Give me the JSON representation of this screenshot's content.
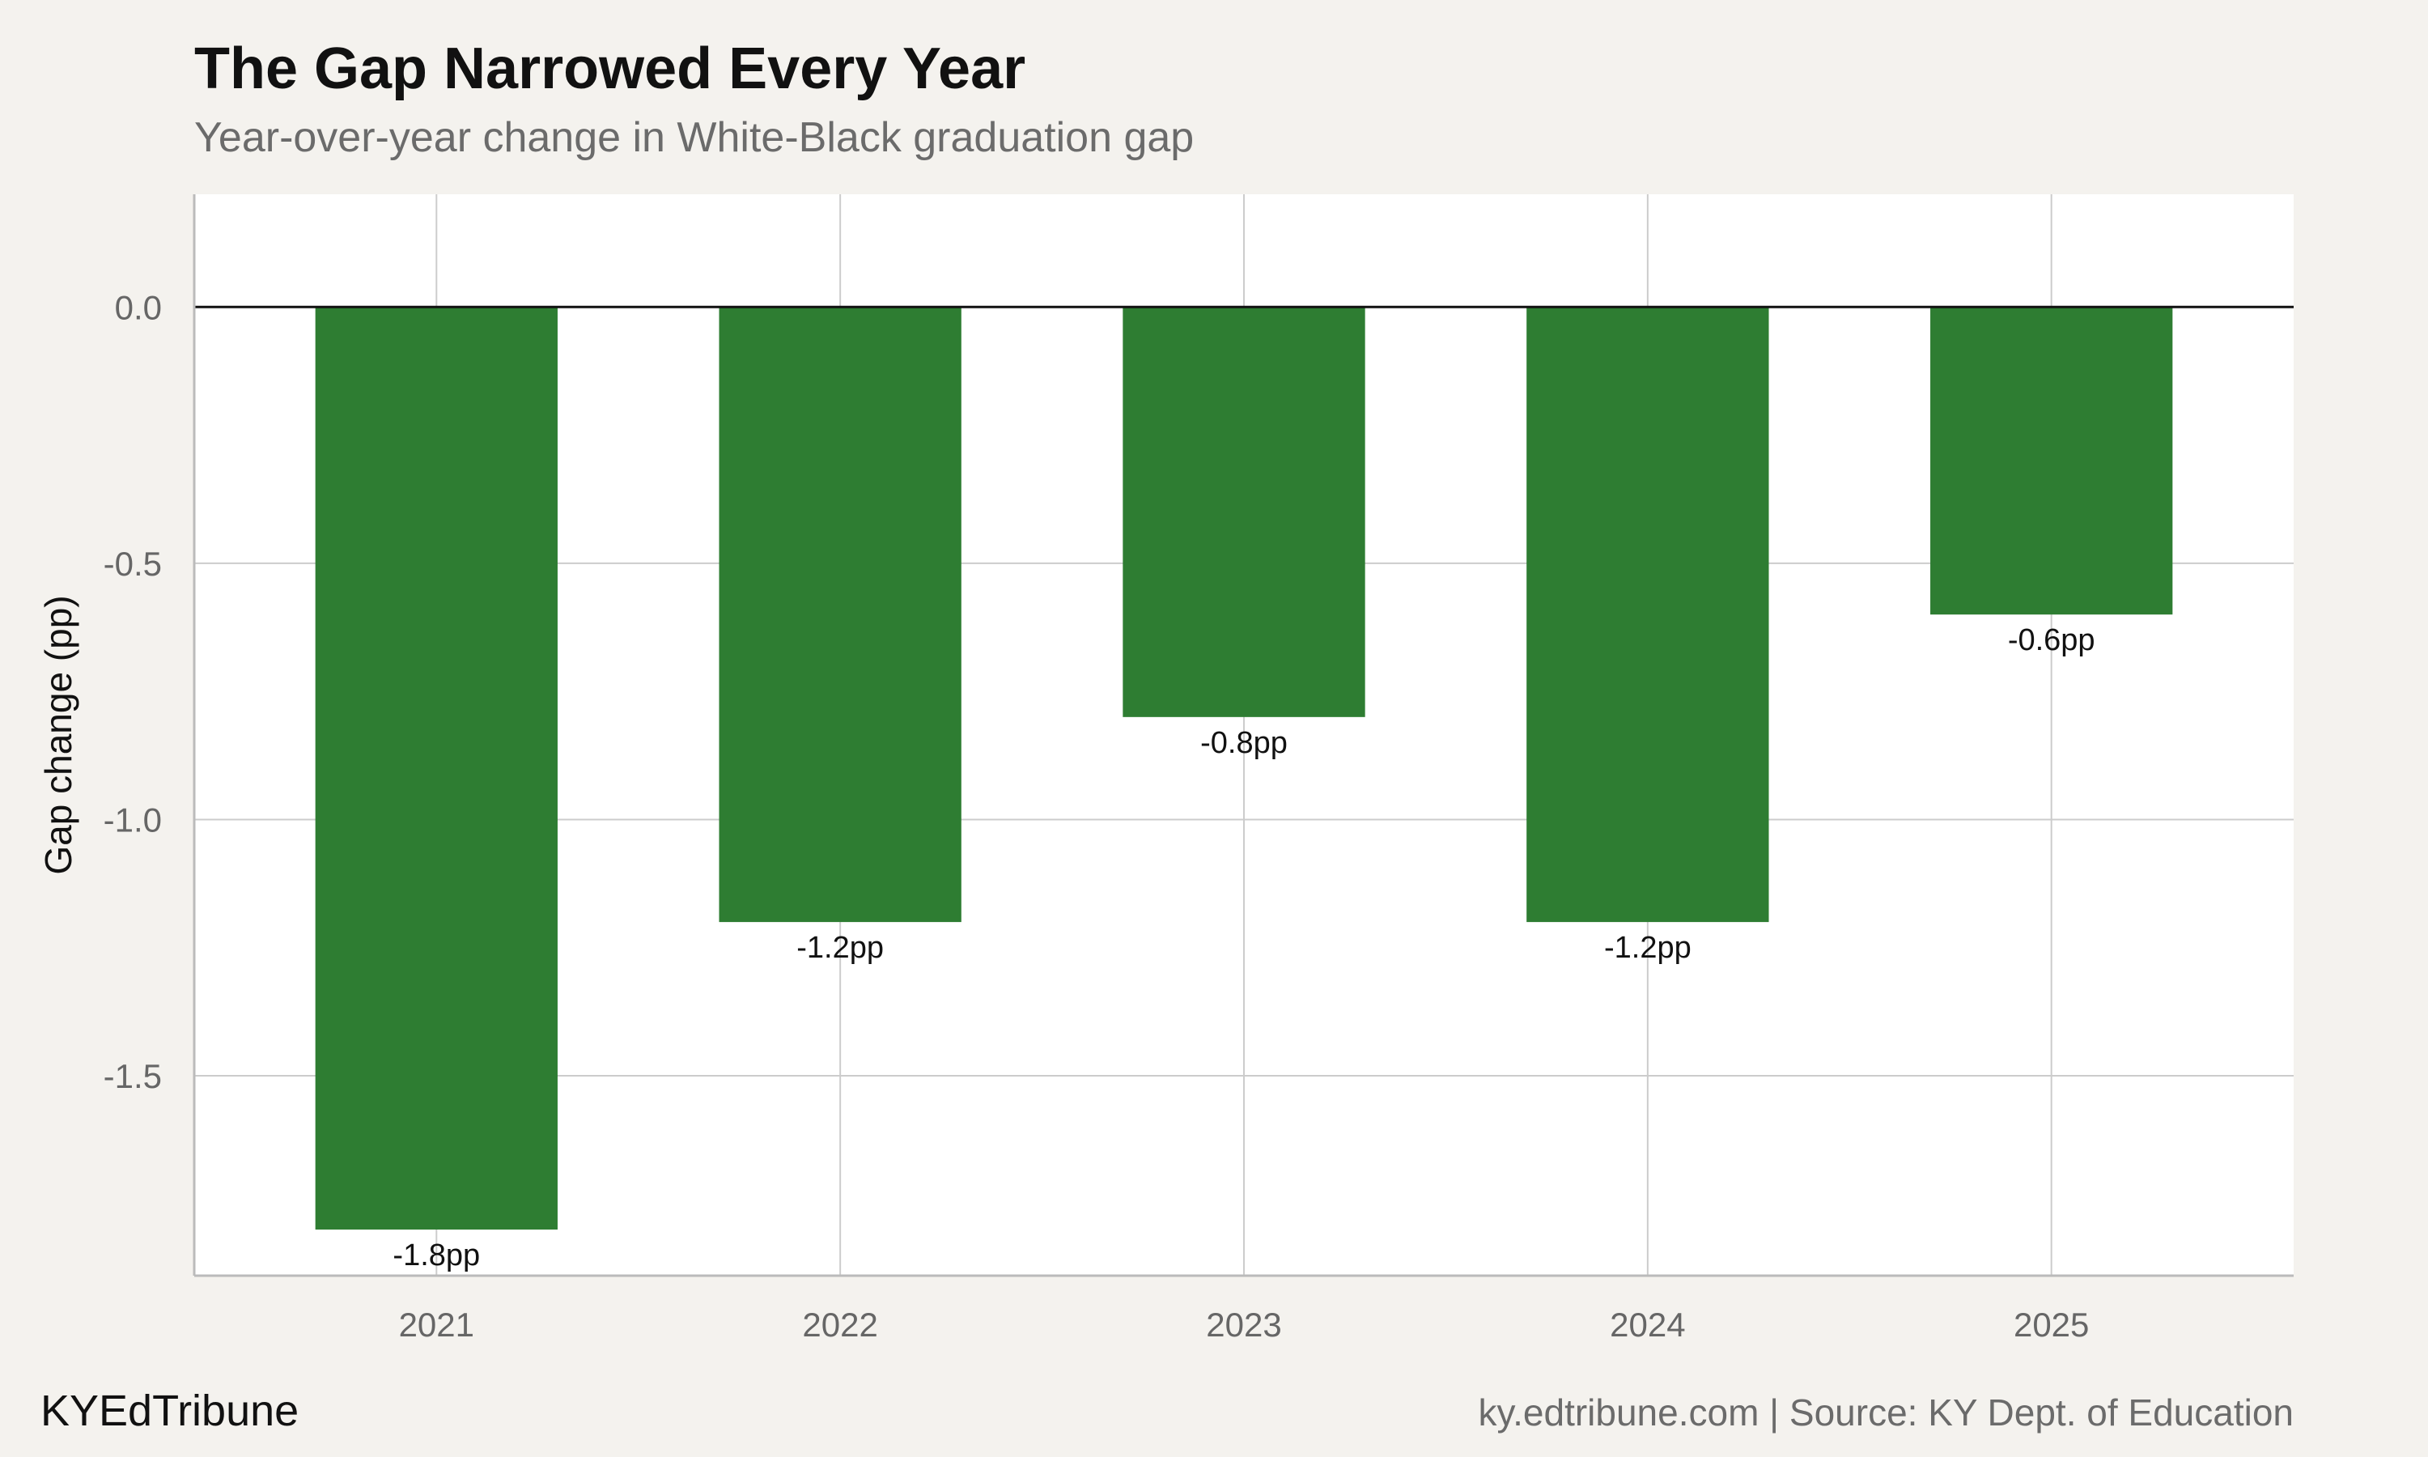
{
  "header": {
    "title": "The Gap Narrowed Every Year",
    "subtitle": "Year-over-year change in White-Black graduation gap"
  },
  "footer": {
    "brand": "KYEdTribune",
    "source": "ky.edtribune.com | Source: KY Dept. of Education"
  },
  "colors": {
    "bar": "#2e7d32",
    "background": "#f4f2ee",
    "panel": "#ffffff",
    "grid": "#cccccc",
    "zero_line": "#111111"
  },
  "chart_data": {
    "type": "bar",
    "title": "The Gap Narrowed Every Year",
    "subtitle": "Year-over-year change in White-Black graduation gap",
    "xlabel": "",
    "ylabel": "Gap change (pp)",
    "categories": [
      "2021",
      "2022",
      "2023",
      "2024",
      "2025"
    ],
    "values": [
      -1.8,
      -1.2,
      -0.8,
      -1.2,
      -0.6
    ],
    "data_labels": [
      "-1.8pp",
      "-1.2pp",
      "-0.8pp",
      "-1.2pp",
      "-0.6pp"
    ],
    "yticks": [
      0.0,
      -0.5,
      -1.0,
      -1.5
    ],
    "ytick_labels": [
      "0.0",
      "-0.5",
      "-1.0",
      "-1.5"
    ],
    "ylim": [
      -1.89,
      0.22
    ],
    "grid": true,
    "legend": "none"
  }
}
